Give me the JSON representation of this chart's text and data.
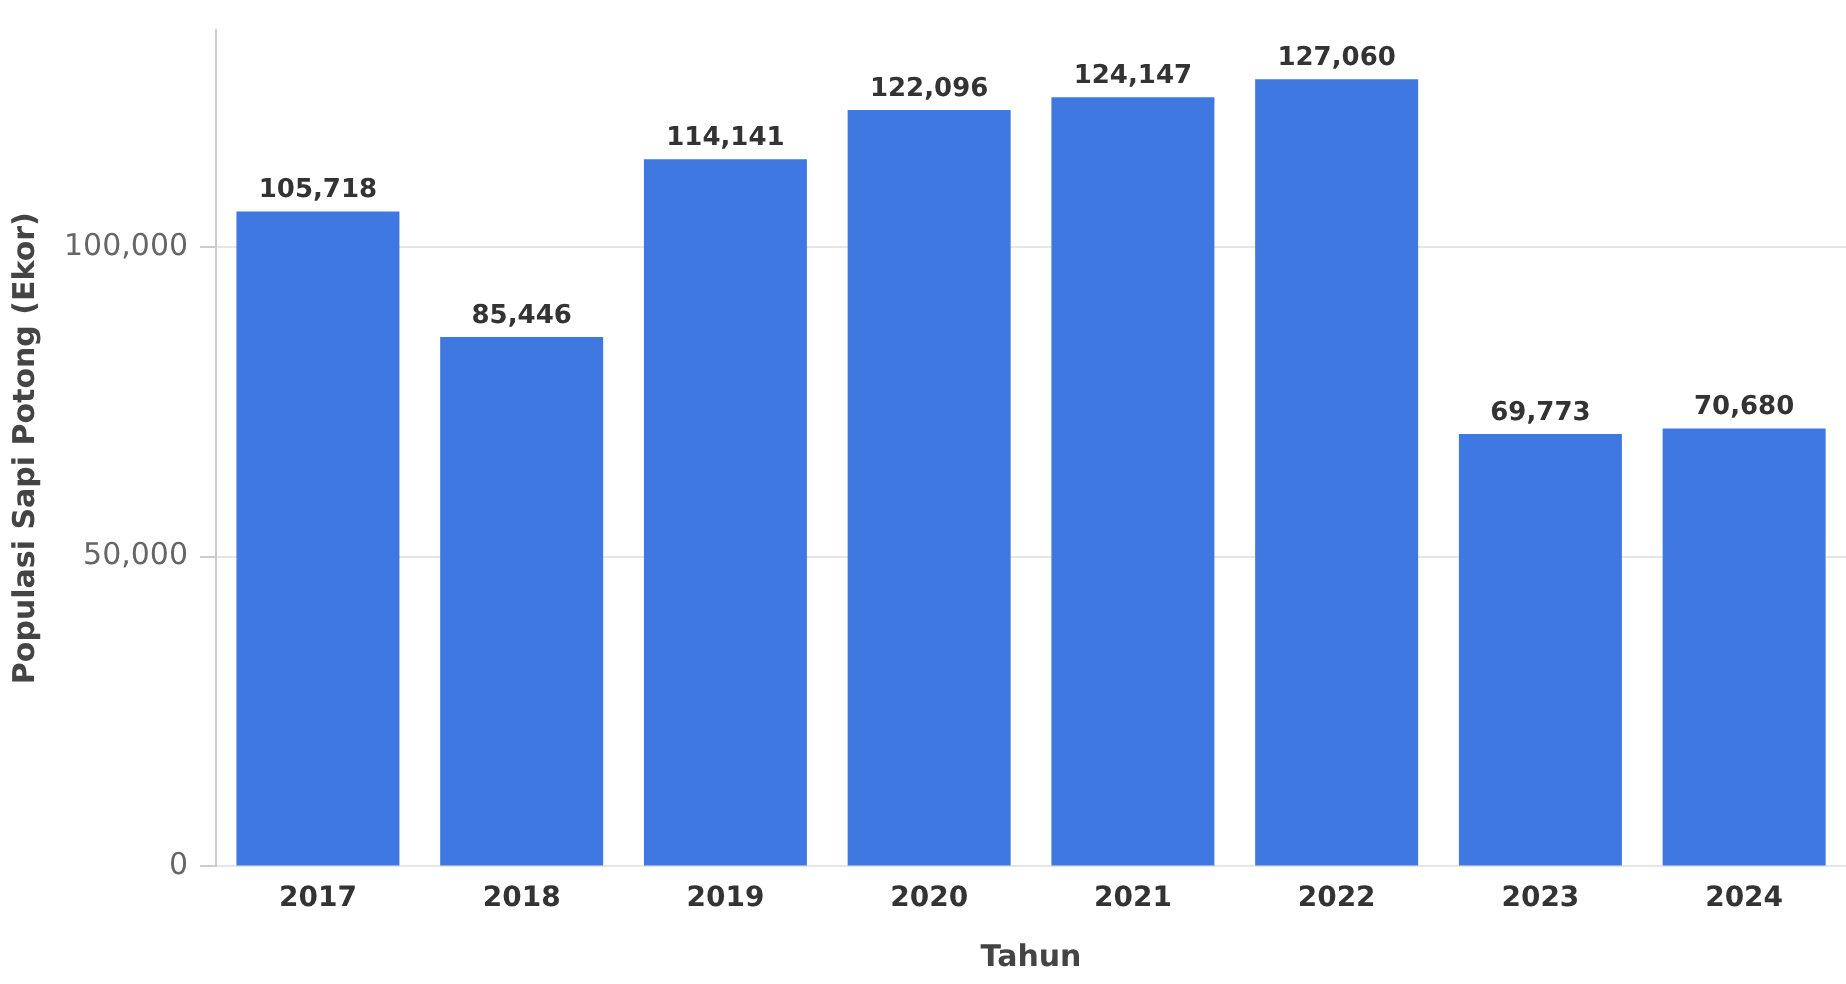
{
  "chart_data": {
    "type": "bar",
    "xlabel": "Tahun",
    "ylabel": "Populasi Sapi Potong (Ekor)",
    "categories": [
      "2017",
      "2018",
      "2019",
      "2020",
      "2021",
      "2022",
      "2023",
      "2024"
    ],
    "values": [
      105718,
      85446,
      114141,
      122096,
      124147,
      127060,
      69773,
      70680
    ],
    "value_labels": [
      "105,718",
      "85,446",
      "114,141",
      "122,096",
      "124,147",
      "127,060",
      "69,773",
      "70,680"
    ],
    "color": "#3f78e0",
    "ylim": [
      0,
      135000
    ],
    "yticks": [
      {
        "value": 0,
        "label": "0"
      },
      {
        "value": 50000,
        "label": "50,000"
      },
      {
        "value": 100000,
        "label": "100,000"
      }
    ],
    "grid": "y",
    "legend": false
  }
}
